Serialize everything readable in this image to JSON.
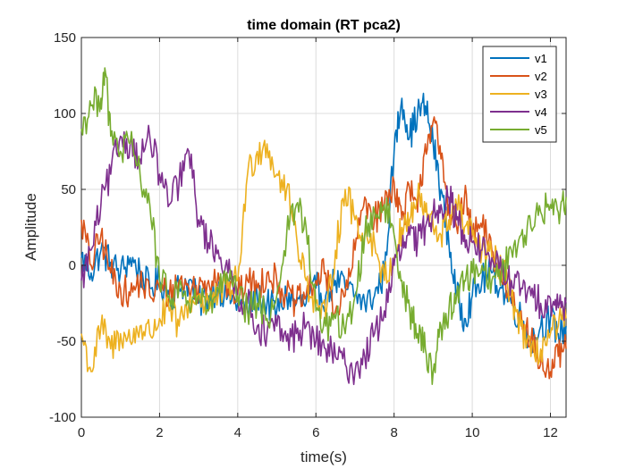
{
  "chart_data": {
    "type": "line",
    "title": "time domain (RT pca2)",
    "xlabel": "time(s)",
    "ylabel": "Amplitude",
    "xlim": [
      0,
      12.4
    ],
    "ylim": [
      -100,
      150
    ],
    "xticks": [
      0,
      2,
      4,
      6,
      8,
      10,
      12
    ],
    "yticks": [
      -100,
      -50,
      0,
      50,
      100,
      150
    ],
    "xtick_labels": [
      "0",
      "2",
      "4",
      "6",
      "8",
      "10",
      "12"
    ],
    "ytick_labels": [
      "-100",
      "-50",
      "0",
      "50",
      "100",
      "150"
    ],
    "grid": true,
    "legend_position": "top-right",
    "series": [
      {
        "name": "v1",
        "color": "#0072BD",
        "x": [
          0,
          0.25,
          0.5,
          0.75,
          1,
          1.25,
          1.5,
          1.75,
          2,
          2.25,
          2.5,
          2.75,
          3,
          3.25,
          3.5,
          3.75,
          4,
          4.25,
          4.5,
          4.75,
          5,
          5.25,
          5.5,
          5.75,
          6,
          6.25,
          6.5,
          6.75,
          7,
          7.25,
          7.5,
          7.75,
          8,
          8.2,
          8.4,
          8.6,
          8.8,
          9,
          9.2,
          9.4,
          9.6,
          9.8,
          10,
          10.25,
          10.5,
          10.75,
          11,
          11.25,
          11.5,
          11.75,
          12,
          12.2,
          12.4
        ],
        "y": [
          5,
          -5,
          10,
          2,
          -5,
          5,
          -5,
          -15,
          -10,
          -20,
          -15,
          -10,
          -25,
          -20,
          -15,
          -20,
          -25,
          -30,
          -20,
          -25,
          -30,
          -20,
          -25,
          -25,
          -15,
          -20,
          -10,
          -15,
          -20,
          -25,
          -20,
          -5,
          75,
          110,
          85,
          100,
          105,
          80,
          50,
          15,
          -20,
          -35,
          -20,
          -10,
          -5,
          -15,
          -25,
          -35,
          -50,
          -40,
          -35,
          -45,
          -40
        ]
      },
      {
        "name": "v2",
        "color": "#D95319",
        "x": [
          0,
          0.25,
          0.5,
          0.75,
          1,
          1.25,
          1.5,
          1.75,
          2,
          2.25,
          2.5,
          2.75,
          3,
          3.25,
          3.5,
          3.75,
          4,
          4.25,
          4.5,
          4.75,
          5,
          5.25,
          5.5,
          5.75,
          6,
          6.25,
          6.5,
          6.75,
          7,
          7.25,
          7.5,
          7.75,
          8,
          8.2,
          8.4,
          8.6,
          8.8,
          9,
          9.2,
          9.4,
          9.6,
          9.8,
          10,
          10.25,
          10.5,
          10.75,
          11,
          11.25,
          11.5,
          11.75,
          12,
          12.2,
          12.4
        ],
        "y": [
          30,
          0,
          20,
          -5,
          -15,
          -20,
          -10,
          -20,
          -15,
          -20,
          -10,
          -15,
          -15,
          -10,
          -5,
          -15,
          -20,
          -10,
          -15,
          -5,
          -10,
          -20,
          -25,
          -20,
          -10,
          -5,
          -30,
          -20,
          10,
          45,
          30,
          40,
          55,
          30,
          50,
          35,
          80,
          95,
          70,
          40,
          25,
          45,
          20,
          25,
          10,
          -10,
          -20,
          -30,
          -50,
          -65,
          -70,
          -60,
          -55
        ]
      },
      {
        "name": "v3",
        "color": "#EDB120",
        "x": [
          0,
          0.25,
          0.5,
          0.75,
          1,
          1.25,
          1.5,
          1.75,
          2,
          2.25,
          2.5,
          2.75,
          3,
          3.25,
          3.5,
          3.75,
          4,
          4.25,
          4.5,
          4.75,
          5,
          5.25,
          5.5,
          5.75,
          6,
          6.25,
          6.5,
          6.75,
          7,
          7.25,
          7.5,
          7.75,
          8,
          8.2,
          8.4,
          8.6,
          8.8,
          9,
          9.2,
          9.4,
          9.6,
          9.8,
          10,
          10.25,
          10.5,
          10.75,
          11,
          11.25,
          11.5,
          11.75,
          12,
          12.2,
          12.4
        ],
        "y": [
          -45,
          -70,
          -40,
          -55,
          -45,
          -50,
          -40,
          -45,
          -35,
          -30,
          -40,
          -25,
          -20,
          -25,
          -20,
          -15,
          -10,
          60,
          75,
          80,
          60,
          50,
          20,
          -10,
          -25,
          -35,
          10,
          50,
          30,
          20,
          15,
          -10,
          5,
          25,
          30,
          45,
          35,
          25,
          20,
          30,
          40,
          25,
          20,
          10,
          5,
          0,
          -20,
          -40,
          -60,
          -55,
          -45,
          -40,
          -35
        ]
      },
      {
        "name": "v4",
        "color": "#7E2F8E",
        "x": [
          0,
          0.25,
          0.5,
          0.75,
          1,
          1.25,
          1.5,
          1.75,
          2,
          2.25,
          2.5,
          2.75,
          3,
          3.25,
          3.5,
          3.75,
          4,
          4.25,
          4.5,
          4.75,
          5,
          5.25,
          5.5,
          5.75,
          6,
          6.25,
          6.5,
          6.75,
          7,
          7.25,
          7.5,
          7.75,
          8,
          8.2,
          8.4,
          8.6,
          8.8,
          9,
          9.2,
          9.4,
          9.6,
          9.8,
          10,
          10.25,
          10.5,
          10.75,
          11,
          11.25,
          11.5,
          11.75,
          12,
          12.2,
          12.4
        ],
        "y": [
          -10,
          10,
          40,
          60,
          85,
          80,
          70,
          85,
          60,
          40,
          55,
          75,
          30,
          15,
          10,
          -5,
          -20,
          -25,
          -40,
          -45,
          -40,
          -50,
          -45,
          -40,
          -50,
          -55,
          -60,
          -65,
          -70,
          -60,
          -45,
          -30,
          0,
          10,
          20,
          15,
          25,
          35,
          40,
          45,
          30,
          20,
          15,
          10,
          5,
          -5,
          -10,
          -15,
          -20,
          -25,
          -22,
          -28,
          -25
        ]
      },
      {
        "name": "v5",
        "color": "#77AC30",
        "x": [
          0,
          0.25,
          0.5,
          0.6,
          0.75,
          1,
          1.25,
          1.5,
          1.75,
          2,
          2.25,
          2.5,
          2.75,
          3,
          3.25,
          3.5,
          3.75,
          4,
          4.25,
          4.5,
          4.75,
          5,
          5.25,
          5.5,
          5.75,
          6,
          6.25,
          6.5,
          6.75,
          7,
          7.25,
          7.5,
          7.75,
          8,
          8.2,
          8.4,
          8.6,
          8.8,
          9,
          9.2,
          9.4,
          9.6,
          9.8,
          10,
          10.25,
          10.5,
          10.75,
          11,
          11.25,
          11.5,
          11.75,
          12,
          12.2,
          12.4
        ],
        "y": [
          90,
          105,
          110,
          130,
          85,
          75,
          80,
          60,
          40,
          -10,
          -20,
          -15,
          -25,
          -20,
          -30,
          -15,
          -10,
          -20,
          -30,
          -25,
          -35,
          -20,
          20,
          40,
          25,
          -30,
          -40,
          -35,
          -45,
          -20,
          20,
          35,
          40,
          20,
          -10,
          -30,
          -45,
          -55,
          -70,
          -40,
          -30,
          -20,
          -10,
          -5,
          0,
          -10,
          -5,
          10,
          20,
          25,
          35,
          40,
          35,
          45
        ]
      }
    ]
  }
}
